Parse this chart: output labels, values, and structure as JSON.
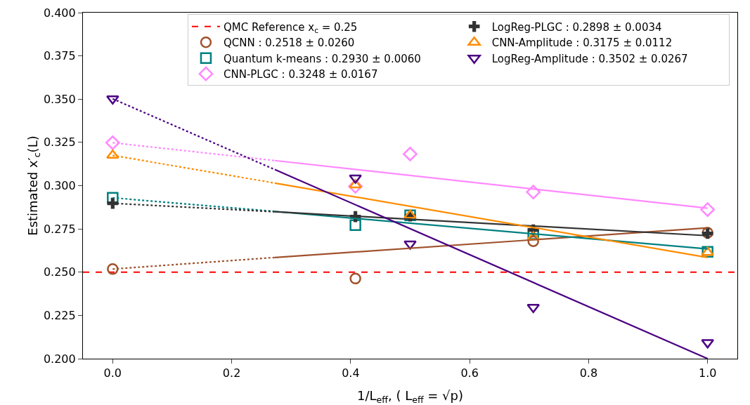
{
  "chart_data": {
    "type": "scatter",
    "xlabel": "1/L$_{eff}$, ( L$_{eff}$ = √p)",
    "ylabel": "Estimated x′$_{c}$(L)",
    "xlim": [
      -0.05,
      1.05
    ],
    "ylim": [
      0.2,
      0.4
    ],
    "xticks": [
      {
        "value": 0,
        "label": "0.0"
      },
      {
        "value": 0.2,
        "label": "0.2"
      },
      {
        "value": 0.4,
        "label": "0.4"
      },
      {
        "value": 0.6,
        "label": "0.6"
      },
      {
        "value": 0.8,
        "label": "0.8"
      },
      {
        "value": 1,
        "label": "1.0"
      }
    ],
    "yticks": [
      {
        "value": 0.2,
        "label": "0.200"
      },
      {
        "value": 0.225,
        "label": "0.225"
      },
      {
        "value": 0.25,
        "label": "0.250"
      },
      {
        "value": 0.275,
        "label": "0.275"
      },
      {
        "value": 0.3,
        "label": "0.300"
      },
      {
        "value": 0.325,
        "label": "0.325"
      },
      {
        "value": 0.35,
        "label": "0.350"
      },
      {
        "value": 0.375,
        "label": "0.375"
      },
      {
        "value": 0.4,
        "label": "0.400"
      }
    ],
    "grid": false,
    "legend": "top right",
    "ref_lines": [
      {
        "axis": "y",
        "value": 0.25,
        "label": "QMC Reference x$_{c}$ = 0.25",
        "color": "#ff0000",
        "line_style": "dashed"
      }
    ],
    "series": [
      {
        "name": "QCNN : 0.2518 ± 0.0260",
        "color": "#a0522d",
        "marker": "circle",
        "x": [
          0,
          0.408,
          0.707,
          1.0
        ],
        "values": [
          0.2518,
          0.2463,
          0.2679,
          0.2728
        ]
      },
      {
        "name": "Quantum k-means : 0.2930 ± 0.0060",
        "color": "#008080",
        "marker": "square",
        "x": [
          0,
          0.408,
          0.5,
          0.707,
          1.0
        ],
        "values": [
          0.293,
          0.2772,
          0.2829,
          0.272,
          0.2618
        ]
      },
      {
        "name": "CNN-PLGC : 0.3248 ± 0.0167",
        "color": "#ff88ff",
        "marker": "diamond",
        "x": [
          0,
          0.408,
          0.5,
          0.707,
          1.0
        ],
        "values": [
          0.3248,
          0.2996,
          0.3183,
          0.2963,
          0.2862
        ]
      },
      {
        "name": "LogReg-PLGC : 0.2898 ± 0.0034",
        "color": "#333333",
        "marker": "cross",
        "x": [
          0,
          0.408,
          0.5,
          0.707,
          1.0
        ],
        "values": [
          0.2898,
          0.2821,
          0.2825,
          0.2744,
          0.2724
        ]
      },
      {
        "name": "CNN-Amplitude : 0.3175 ± 0.0112",
        "color": "#ff8c00",
        "marker": "triangle",
        "x": [
          0,
          0.408,
          0.5,
          0.707,
          1.0
        ],
        "values": [
          0.3175,
          0.3004,
          0.2829,
          0.2703,
          0.2614
        ]
      },
      {
        "name": "LogReg-Amplitude : 0.3502 ± 0.0267",
        "color": "#4b0082",
        "marker": "triangle-down",
        "x": [
          0,
          0.408,
          0.5,
          0.707,
          1.0
        ],
        "values": [
          0.3502,
          0.3045,
          0.2663,
          0.2297,
          0.2093
        ]
      },
      {
        "type": "line",
        "color": "#a0522d",
        "line_style": "solid",
        "x": [
          0.2725,
          1.0
        ],
        "values": [
          0.2585,
          0.2756
        ]
      },
      {
        "type": "line",
        "color": "#a0522d",
        "line_style": "dotted",
        "x": [
          0,
          0.2725
        ],
        "values": [
          0.2518,
          0.2585
        ]
      },
      {
        "type": "line",
        "color": "#008080",
        "line_style": "solid",
        "x": [
          0.2725,
          1.0
        ],
        "values": [
          0.2851,
          0.2634
        ]
      },
      {
        "type": "line",
        "color": "#008080",
        "line_style": "dotted",
        "x": [
          0,
          0.2725
        ],
        "values": [
          0.293,
          0.2851
        ]
      },
      {
        "type": "line",
        "color": "#ff88ff",
        "line_style": "solid",
        "x": [
          0.2725,
          1.0
        ],
        "values": [
          0.3145,
          0.287
        ]
      },
      {
        "type": "line",
        "color": "#ff88ff",
        "line_style": "dotted",
        "x": [
          0,
          0.2725
        ],
        "values": [
          0.3248,
          0.3145
        ]
      },
      {
        "type": "line",
        "color": "#333333",
        "line_style": "solid",
        "x": [
          0.2725,
          1.0
        ],
        "values": [
          0.2849,
          0.2711
        ]
      },
      {
        "type": "line",
        "color": "#333333",
        "line_style": "dotted",
        "x": [
          0,
          0.2725
        ],
        "values": [
          0.2898,
          0.2849
        ]
      },
      {
        "type": "line",
        "color": "#ff8c00",
        "line_style": "solid",
        "x": [
          0.2725,
          1.0
        ],
        "values": [
          0.3015,
          0.2585
        ]
      },
      {
        "type": "line",
        "color": "#ff8c00",
        "line_style": "dotted",
        "x": [
          0,
          0.2725
        ],
        "values": [
          0.3175,
          0.3015
        ]
      },
      {
        "type": "line",
        "color": "#4b0082",
        "line_style": "solid",
        "x": [
          0.2725,
          1.0
        ],
        "values": [
          0.3093,
          0.2
        ]
      },
      {
        "type": "line",
        "color": "#4b0082",
        "line_style": "dotted",
        "x": [
          0,
          0.2725
        ],
        "values": [
          0.3502,
          0.3093
        ]
      }
    ]
  }
}
